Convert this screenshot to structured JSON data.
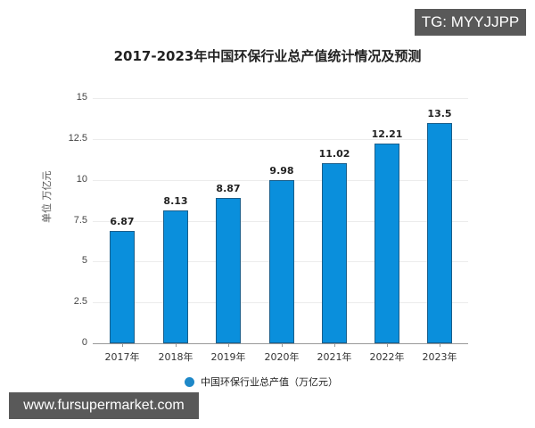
{
  "watermarks": {
    "top_right": "TG: MYYJJPP",
    "bottom_left": "www.fursupermarket.com"
  },
  "colors": {
    "bar": "#0a8fdc",
    "bar_border": "#1a5e8a",
    "legend_marker": "#1e88c8",
    "watermark_bg": "#595959"
  },
  "chart_data": {
    "type": "bar",
    "title": "2017-2023年中国环保行业总产值统计情况及预测",
    "categories": [
      "2017年",
      "2018年",
      "2019年",
      "2020年",
      "2021年",
      "2022年",
      "2023年"
    ],
    "series": [
      {
        "name": "中国环保行业总产值（万亿元）",
        "values": [
          6.87,
          8.13,
          8.87,
          9.98,
          11.02,
          12.21,
          13.5
        ]
      }
    ],
    "value_labels": [
      "6.87",
      "8.13",
      "8.87",
      "9.98",
      "11.02",
      "12.21",
      "13.5"
    ],
    "xlabel": "",
    "ylabel": "单位  万亿元",
    "ylim": [
      0,
      15
    ],
    "yticks": [
      "0",
      "2.5",
      "5",
      "7.5",
      "10",
      "12.5",
      "15"
    ],
    "grid": true,
    "legend_position": "bottom"
  }
}
